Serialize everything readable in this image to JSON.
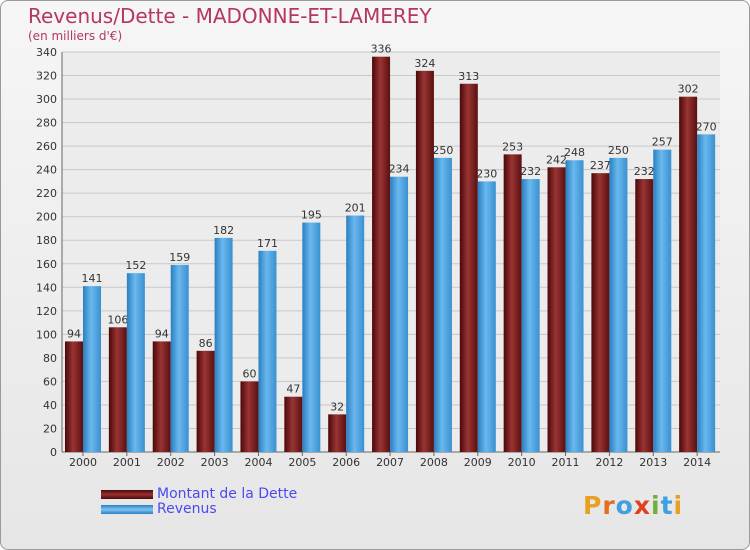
{
  "title": "Revenus/Dette - MADONNE-ET-LAMEREY",
  "subtitle": "(en milliers d'€)",
  "colors": {
    "dette": "#7a1a1a",
    "revenus": "#3f9fe0",
    "title": "#b5375f",
    "legend_text": "#4a4af0"
  },
  "legend": [
    {
      "label": "Montant de la Dette",
      "color": "#7a1a1a"
    },
    {
      "label": "Revenus",
      "color": "#3f9fe0"
    }
  ],
  "logo": {
    "text": "Proxiti",
    "letters": [
      "P",
      "r",
      "o",
      "x",
      "i",
      "t",
      "i"
    ]
  },
  "chart_data": {
    "type": "bar",
    "title": "Revenus/Dette - MADONNE-ET-LAMEREY",
    "subtitle": "(en milliers d'€)",
    "categories": [
      "2000",
      "2001",
      "2002",
      "2003",
      "2004",
      "2005",
      "2006",
      "2007",
      "2008",
      "2009",
      "2010",
      "2011",
      "2012",
      "2013",
      "2014"
    ],
    "series": [
      {
        "name": "Montant de la Dette",
        "values": [
          94,
          106,
          94,
          86,
          60,
          47,
          32,
          336,
          324,
          313,
          253,
          242,
          237,
          232,
          302
        ]
      },
      {
        "name": "Revenus",
        "values": [
          141,
          152,
          159,
          182,
          171,
          195,
          201,
          234,
          250,
          230,
          232,
          248,
          250,
          257,
          270
        ]
      }
    ],
    "ylim": [
      0,
      340
    ],
    "yticks": [
      0,
      20,
      40,
      60,
      80,
      100,
      120,
      140,
      160,
      180,
      200,
      220,
      240,
      260,
      280,
      300,
      320,
      340
    ],
    "grid": true,
    "legend_position": "bottom-left"
  }
}
